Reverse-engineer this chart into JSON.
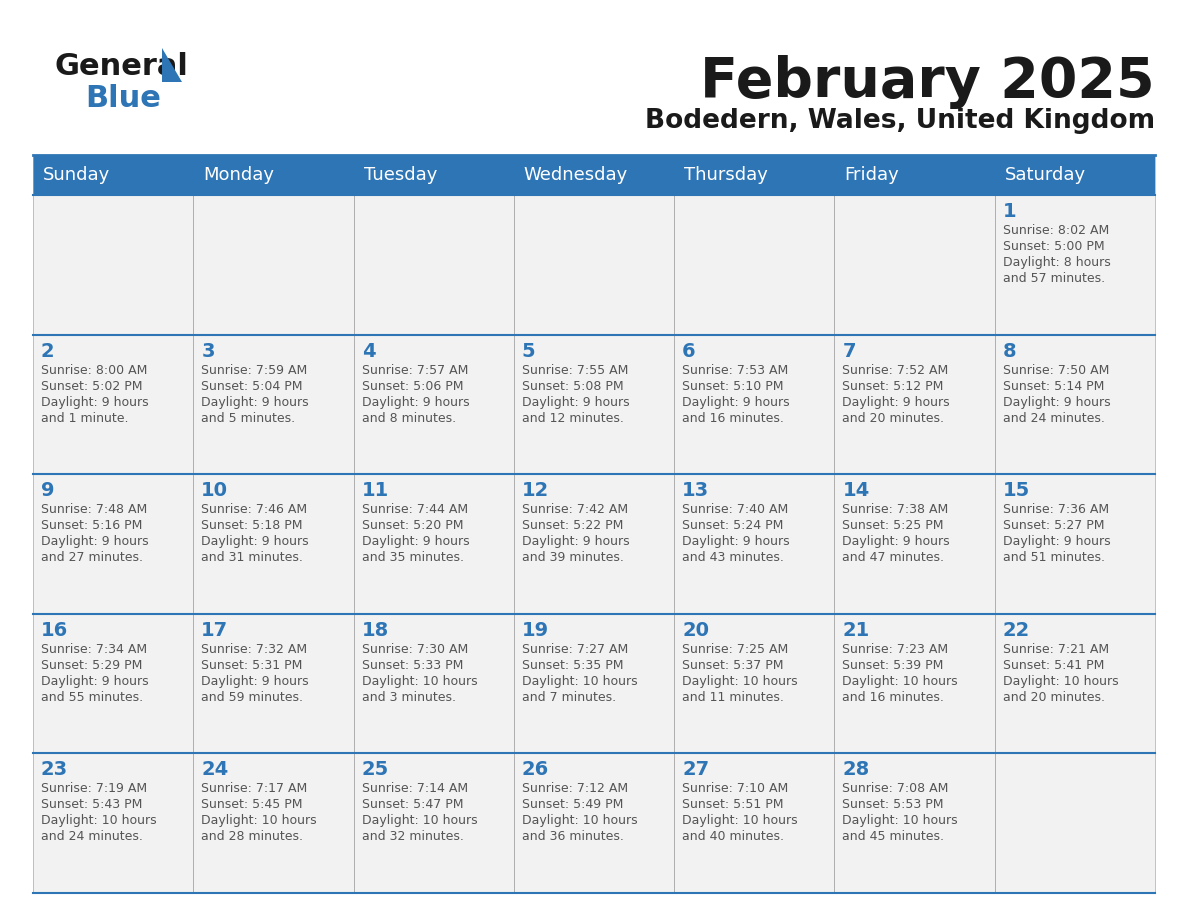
{
  "title": "February 2025",
  "subtitle": "Bodedern, Wales, United Kingdom",
  "header_bg": "#2E75B6",
  "header_text_color": "#FFFFFF",
  "cell_bg_odd": "#F2F2F2",
  "cell_bg_even": "#FFFFFF",
  "day_number_color": "#2E75B6",
  "cell_text_color": "#555555",
  "border_color": "#2E75B6",
  "grid_line_color": "#AAAAAA",
  "days_of_week": [
    "Sunday",
    "Monday",
    "Tuesday",
    "Wednesday",
    "Thursday",
    "Friday",
    "Saturday"
  ],
  "calendar": [
    [
      null,
      null,
      null,
      null,
      null,
      null,
      {
        "day": "1",
        "sunrise": "8:02 AM",
        "sunset": "5:00 PM",
        "daylight_line1": "8 hours",
        "daylight_line2": "and 57 minutes."
      }
    ],
    [
      {
        "day": "2",
        "sunrise": "8:00 AM",
        "sunset": "5:02 PM",
        "daylight_line1": "9 hours",
        "daylight_line2": "and 1 minute."
      },
      {
        "day": "3",
        "sunrise": "7:59 AM",
        "sunset": "5:04 PM",
        "daylight_line1": "9 hours",
        "daylight_line2": "and 5 minutes."
      },
      {
        "day": "4",
        "sunrise": "7:57 AM",
        "sunset": "5:06 PM",
        "daylight_line1": "9 hours",
        "daylight_line2": "and 8 minutes."
      },
      {
        "day": "5",
        "sunrise": "7:55 AM",
        "sunset": "5:08 PM",
        "daylight_line1": "9 hours",
        "daylight_line2": "and 12 minutes."
      },
      {
        "day": "6",
        "sunrise": "7:53 AM",
        "sunset": "5:10 PM",
        "daylight_line1": "9 hours",
        "daylight_line2": "and 16 minutes."
      },
      {
        "day": "7",
        "sunrise": "7:52 AM",
        "sunset": "5:12 PM",
        "daylight_line1": "9 hours",
        "daylight_line2": "and 20 minutes."
      },
      {
        "day": "8",
        "sunrise": "7:50 AM",
        "sunset": "5:14 PM",
        "daylight_line1": "9 hours",
        "daylight_line2": "and 24 minutes."
      }
    ],
    [
      {
        "day": "9",
        "sunrise": "7:48 AM",
        "sunset": "5:16 PM",
        "daylight_line1": "9 hours",
        "daylight_line2": "and 27 minutes."
      },
      {
        "day": "10",
        "sunrise": "7:46 AM",
        "sunset": "5:18 PM",
        "daylight_line1": "9 hours",
        "daylight_line2": "and 31 minutes."
      },
      {
        "day": "11",
        "sunrise": "7:44 AM",
        "sunset": "5:20 PM",
        "daylight_line1": "9 hours",
        "daylight_line2": "and 35 minutes."
      },
      {
        "day": "12",
        "sunrise": "7:42 AM",
        "sunset": "5:22 PM",
        "daylight_line1": "9 hours",
        "daylight_line2": "and 39 minutes."
      },
      {
        "day": "13",
        "sunrise": "7:40 AM",
        "sunset": "5:24 PM",
        "daylight_line1": "9 hours",
        "daylight_line2": "and 43 minutes."
      },
      {
        "day": "14",
        "sunrise": "7:38 AM",
        "sunset": "5:25 PM",
        "daylight_line1": "9 hours",
        "daylight_line2": "and 47 minutes."
      },
      {
        "day": "15",
        "sunrise": "7:36 AM",
        "sunset": "5:27 PM",
        "daylight_line1": "9 hours",
        "daylight_line2": "and 51 minutes."
      }
    ],
    [
      {
        "day": "16",
        "sunrise": "7:34 AM",
        "sunset": "5:29 PM",
        "daylight_line1": "9 hours",
        "daylight_line2": "and 55 minutes."
      },
      {
        "day": "17",
        "sunrise": "7:32 AM",
        "sunset": "5:31 PM",
        "daylight_line1": "9 hours",
        "daylight_line2": "and 59 minutes."
      },
      {
        "day": "18",
        "sunrise": "7:30 AM",
        "sunset": "5:33 PM",
        "daylight_line1": "10 hours",
        "daylight_line2": "and 3 minutes."
      },
      {
        "day": "19",
        "sunrise": "7:27 AM",
        "sunset": "5:35 PM",
        "daylight_line1": "10 hours",
        "daylight_line2": "and 7 minutes."
      },
      {
        "day": "20",
        "sunrise": "7:25 AM",
        "sunset": "5:37 PM",
        "daylight_line1": "10 hours",
        "daylight_line2": "and 11 minutes."
      },
      {
        "day": "21",
        "sunrise": "7:23 AM",
        "sunset": "5:39 PM",
        "daylight_line1": "10 hours",
        "daylight_line2": "and 16 minutes."
      },
      {
        "day": "22",
        "sunrise": "7:21 AM",
        "sunset": "5:41 PM",
        "daylight_line1": "10 hours",
        "daylight_line2": "and 20 minutes."
      }
    ],
    [
      {
        "day": "23",
        "sunrise": "7:19 AM",
        "sunset": "5:43 PM",
        "daylight_line1": "10 hours",
        "daylight_line2": "and 24 minutes."
      },
      {
        "day": "24",
        "sunrise": "7:17 AM",
        "sunset": "5:45 PM",
        "daylight_line1": "10 hours",
        "daylight_line2": "and 28 minutes."
      },
      {
        "day": "25",
        "sunrise": "7:14 AM",
        "sunset": "5:47 PM",
        "daylight_line1": "10 hours",
        "daylight_line2": "and 32 minutes."
      },
      {
        "day": "26",
        "sunrise": "7:12 AM",
        "sunset": "5:49 PM",
        "daylight_line1": "10 hours",
        "daylight_line2": "and 36 minutes."
      },
      {
        "day": "27",
        "sunrise": "7:10 AM",
        "sunset": "5:51 PM",
        "daylight_line1": "10 hours",
        "daylight_line2": "and 40 minutes."
      },
      {
        "day": "28",
        "sunrise": "7:08 AM",
        "sunset": "5:53 PM",
        "daylight_line1": "10 hours",
        "daylight_line2": "and 45 minutes."
      },
      null
    ]
  ],
  "logo_general_color": "#1a1a1a",
  "logo_blue_color": "#2E75B6",
  "logo_triangle_color": "#2E75B6"
}
